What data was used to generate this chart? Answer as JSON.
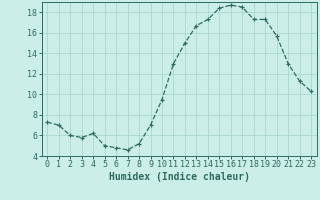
{
  "x": [
    0,
    1,
    2,
    3,
    4,
    5,
    6,
    7,
    8,
    9,
    10,
    11,
    12,
    13,
    14,
    15,
    16,
    17,
    18,
    19,
    20,
    21,
    22,
    23
  ],
  "y": [
    7.3,
    7.0,
    6.0,
    5.8,
    6.2,
    5.0,
    4.8,
    4.6,
    5.2,
    7.0,
    9.5,
    13.0,
    15.0,
    16.7,
    17.3,
    18.4,
    18.7,
    18.5,
    17.3,
    17.3,
    15.7,
    13.0,
    11.3,
    10.3
  ],
  "line_color": "#2e6b5e",
  "bg_color": "#cceee8",
  "grid_color": "#aad8d0",
  "xlabel": "Humidex (Indice chaleur)",
  "ylim": [
    4,
    19
  ],
  "yticks": [
    4,
    6,
    8,
    10,
    12,
    14,
    16,
    18
  ],
  "xticks": [
    0,
    1,
    2,
    3,
    4,
    5,
    6,
    7,
    8,
    9,
    10,
    11,
    12,
    13,
    14,
    15,
    16,
    17,
    18,
    19,
    20,
    21,
    22,
    23
  ],
  "tick_fontsize": 6,
  "xlabel_fontsize": 7,
  "marker_size": 3,
  "linewidth": 0.9
}
